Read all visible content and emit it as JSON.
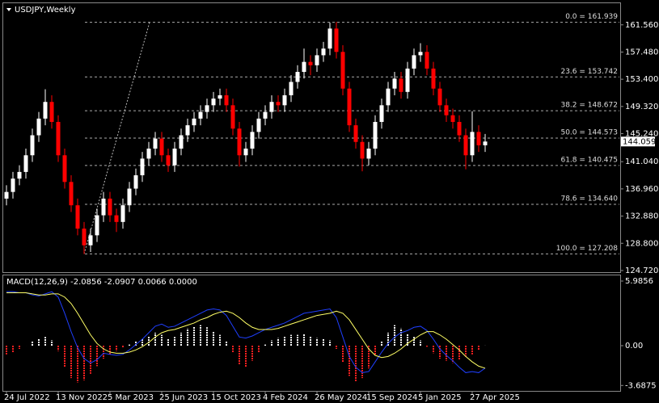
{
  "chart_data": [
    {
      "type": "candlestick",
      "title": "USDJPY,Weekly",
      "categories": [
        "24 Jul 2022",
        null,
        null,
        null,
        null,
        null,
        null,
        null,
        "13 Nov 2022",
        null,
        null,
        null,
        null,
        null,
        null,
        null,
        "5 Mar 2023",
        null,
        null,
        null,
        null,
        null,
        null,
        null,
        "25 Jun 2023",
        null,
        null,
        null,
        null,
        null,
        null,
        null,
        "15 Oct 2023",
        null,
        null,
        null,
        null,
        null,
        null,
        null,
        "4 Feb 2024",
        null,
        null,
        null,
        null,
        null,
        null,
        null,
        "26 May 2024",
        null,
        null,
        null,
        null,
        null,
        null,
        null,
        "15 Sep 2024",
        null,
        null,
        null,
        null,
        null,
        null,
        null,
        "5 Jan 2025",
        null,
        null,
        null,
        null,
        null,
        null,
        null,
        "27 Apr 2025",
        null,
        null
      ],
      "open": [
        135.5,
        136.5,
        138.5,
        139.5,
        142,
        145,
        147.5,
        150,
        147,
        142,
        138,
        134.5,
        131,
        128.5,
        130,
        133,
        135.5,
        133,
        132,
        134.5,
        137,
        139,
        141.5,
        143,
        144.5,
        142,
        140.5,
        143,
        145,
        146.5,
        147.5,
        148.5,
        149.5,
        150.5,
        151,
        149.5,
        146,
        142,
        143,
        145.5,
        147.5,
        148.5,
        150,
        149.5,
        151,
        153,
        154.5,
        156,
        155.5,
        157,
        158,
        161,
        157.5,
        152,
        146.5,
        144,
        141.5,
        143,
        147,
        149.5,
        152,
        153.5,
        151.5,
        155,
        157,
        157.5,
        155,
        152,
        149.5,
        148,
        147,
        145,
        142,
        145.5,
        143.5
      ],
      "high": [
        137.5,
        139.5,
        140.5,
        143,
        146,
        148.5,
        151.9,
        151,
        148,
        143,
        139,
        135.5,
        132,
        131,
        134,
        136.5,
        136.5,
        134,
        135.5,
        138,
        140,
        142.5,
        144,
        145.5,
        145.5,
        143,
        144,
        146,
        147.5,
        148.5,
        149.5,
        150.5,
        151.5,
        152,
        152,
        150.5,
        147,
        144,
        146.5,
        148.5,
        149.5,
        151,
        151,
        152,
        154,
        155.5,
        158,
        157,
        158,
        159,
        161.9,
        162,
        158.5,
        153,
        147.5,
        145,
        144,
        148,
        150.5,
        153,
        154.5,
        154.5,
        156,
        158,
        158.8,
        158.5,
        156,
        153,
        150.5,
        149,
        148,
        146,
        148.6,
        146.5,
        145.2
      ],
      "low": [
        134.5,
        135.5,
        137.5,
        138.5,
        141,
        144,
        146.5,
        146,
        141,
        137,
        133.5,
        130,
        127.2,
        127.5,
        129,
        132,
        132,
        130.5,
        131,
        133.5,
        136,
        138,
        140.5,
        142,
        141,
        139.5,
        139.5,
        142,
        144,
        145.5,
        146.5,
        147.5,
        148.5,
        149.5,
        148.5,
        145,
        140.3,
        141,
        142,
        144.5,
        146.5,
        147.5,
        148.5,
        148.5,
        150,
        152,
        153.5,
        154,
        154.5,
        156,
        157,
        156.5,
        151,
        145.5,
        143,
        139.6,
        140.5,
        142,
        146,
        148.5,
        151,
        150.5,
        150.5,
        154,
        156,
        154,
        151,
        148.5,
        147,
        146,
        144,
        139.9,
        141,
        142.5,
        142.5
      ],
      "close": [
        136.5,
        138.5,
        139.5,
        142,
        145,
        147.5,
        150,
        147,
        142,
        138,
        134.5,
        131,
        128.5,
        130,
        133,
        135.5,
        133,
        132,
        134.5,
        137,
        139,
        141.5,
        143,
        144.5,
        142,
        140.5,
        143,
        145,
        146.5,
        147.5,
        148.5,
        149.5,
        150.5,
        151,
        149.5,
        146,
        142,
        143,
        145.5,
        147.5,
        148.5,
        150,
        149.5,
        151,
        153,
        154.5,
        156,
        155.5,
        157,
        158,
        161,
        157.5,
        152,
        146.5,
        144,
        141.5,
        143,
        147,
        149.5,
        152,
        153.5,
        151.5,
        155,
        157,
        157.5,
        155,
        152,
        149.5,
        148,
        147,
        145,
        142,
        145.5,
        143.5,
        144.059
      ],
      "up_color": "#ffffff",
      "down_color": "#ff0000",
      "ylim": [
        124.35,
        164.8
      ],
      "yticks": [
        {
          "value": 161.56,
          "label": "161.560"
        },
        {
          "value": 157.48,
          "label": "157.480"
        },
        {
          "value": 153.4,
          "label": "153.400"
        },
        {
          "value": 149.32,
          "label": "149.320"
        },
        {
          "value": 145.24,
          "label": "145.240"
        },
        {
          "value": 141.04,
          "label": "141.040"
        },
        {
          "value": 136.96,
          "label": "136.960"
        },
        {
          "value": 132.88,
          "label": "132.880"
        },
        {
          "value": 128.8,
          "label": "128.800"
        },
        {
          "value": 124.72,
          "label": "124.720"
        }
      ],
      "current_price": 144.059,
      "fib_levels": [
        {
          "value": 161.939,
          "label": "0.0 = 161.939"
        },
        {
          "value": 153.742,
          "label": "23.6 = 153.742"
        },
        {
          "value": 148.672,
          "label": "38.2 = 148.672"
        },
        {
          "value": 144.573,
          "label": "50.0 = 144.573"
        },
        {
          "value": 140.475,
          "label": "61.8 = 140.475"
        },
        {
          "value": 134.64,
          "label": "78.6 = 134.640"
        },
        {
          "value": 127.208,
          "label": "100.0 = 127.208"
        }
      ]
    },
    {
      "type": "macd",
      "title": "MACD(12,26,9) -2.0856 -2.0907 0.0066 0.0000",
      "histogram": [
        -0.8,
        -0.6,
        -0.3,
        0,
        0.4,
        0.6,
        0.8,
        0.5,
        -0.5,
        -2.0,
        -3.0,
        -3.4,
        -3.2,
        -2.6,
        -1.9,
        -1.2,
        -0.9,
        -0.5,
        -0.2,
        0.1,
        0.4,
        0.6,
        0.9,
        1.2,
        1.0,
        0.6,
        0.8,
        1.2,
        1.6,
        1.8,
        1.9,
        1.7,
        1.3,
        1.0,
        0.4,
        -0.6,
        -1.8,
        -2.0,
        -1.4,
        -0.6,
        0.1,
        0.5,
        0.7,
        0.9,
        1.0,
        1.0,
        1.1,
        0.9,
        0.7,
        0.6,
        0.5,
        -0.3,
        -1.5,
        -2.8,
        -3.3,
        -3.0,
        -2.1,
        -0.9,
        0.4,
        1.2,
        1.9,
        1.6,
        1.1,
        0.8,
        0.5,
        -0.1,
        -0.7,
        -1.2,
        -1.4,
        -1.6,
        -1.3,
        -1.0,
        -0.8,
        -0.4,
        0.0066
      ],
      "series": [
        {
          "color": "#1f3fff",
          "values": [
            5.0,
            5.0,
            4.9,
            4.9,
            4.7,
            4.6,
            4.8,
            5.0,
            4.5,
            3.0,
            1.3,
            -0.2,
            -1.2,
            -1.6,
            -1.3,
            -0.7,
            -0.8,
            -0.9,
            -0.8,
            -0.4,
            0.1,
            0.6,
            1.2,
            1.8,
            2.0,
            1.7,
            1.8,
            2.1,
            2.4,
            2.7,
            3.0,
            3.3,
            3.4,
            3.3,
            2.8,
            1.8,
            0.8,
            0.7,
            0.9,
            1.2,
            1.5,
            1.7,
            1.9,
            2.1,
            2.4,
            2.7,
            3.0,
            3.1,
            3.2,
            3.3,
            3.4,
            2.6,
            0.8,
            -1.0,
            -2.0,
            -2.5,
            -2.4,
            -1.5,
            -0.6,
            0.2,
            0.8,
            1.2,
            1.4,
            1.7,
            1.8,
            1.4,
            0.6,
            -0.3,
            -0.9,
            -1.4,
            -2.0,
            -2.5,
            -2.4,
            -2.5,
            -2.0856
          ]
        },
        {
          "color": "#ffff66",
          "values": [
            4.9,
            4.9,
            4.9,
            4.9,
            4.8,
            4.7,
            4.7,
            4.8,
            4.8,
            4.5,
            3.9,
            3.0,
            2.0,
            1.0,
            0.2,
            -0.3,
            -0.6,
            -0.7,
            -0.7,
            -0.6,
            -0.4,
            -0.1,
            0.3,
            0.8,
            1.2,
            1.4,
            1.5,
            1.7,
            1.9,
            2.1,
            2.4,
            2.6,
            2.9,
            3.1,
            3.2,
            3.0,
            2.6,
            2.1,
            1.7,
            1.5,
            1.5,
            1.5,
            1.6,
            1.8,
            2.0,
            2.2,
            2.4,
            2.6,
            2.8,
            2.9,
            3.0,
            3.2,
            3.0,
            2.4,
            1.5,
            0.6,
            -0.3,
            -0.9,
            -1.1,
            -1.0,
            -0.7,
            -0.3,
            0.2,
            0.6,
            1.0,
            1.3,
            1.3,
            1.0,
            0.6,
            0.1,
            -0.4,
            -1.0,
            -1.5,
            -1.9,
            -2.0907
          ]
        }
      ],
      "ylim": [
        -4.19,
        6.51
      ],
      "yticks": [
        5.9856,
        {
          "value": 0,
          "label": "0.00"
        },
        -3.6875
      ]
    }
  ]
}
